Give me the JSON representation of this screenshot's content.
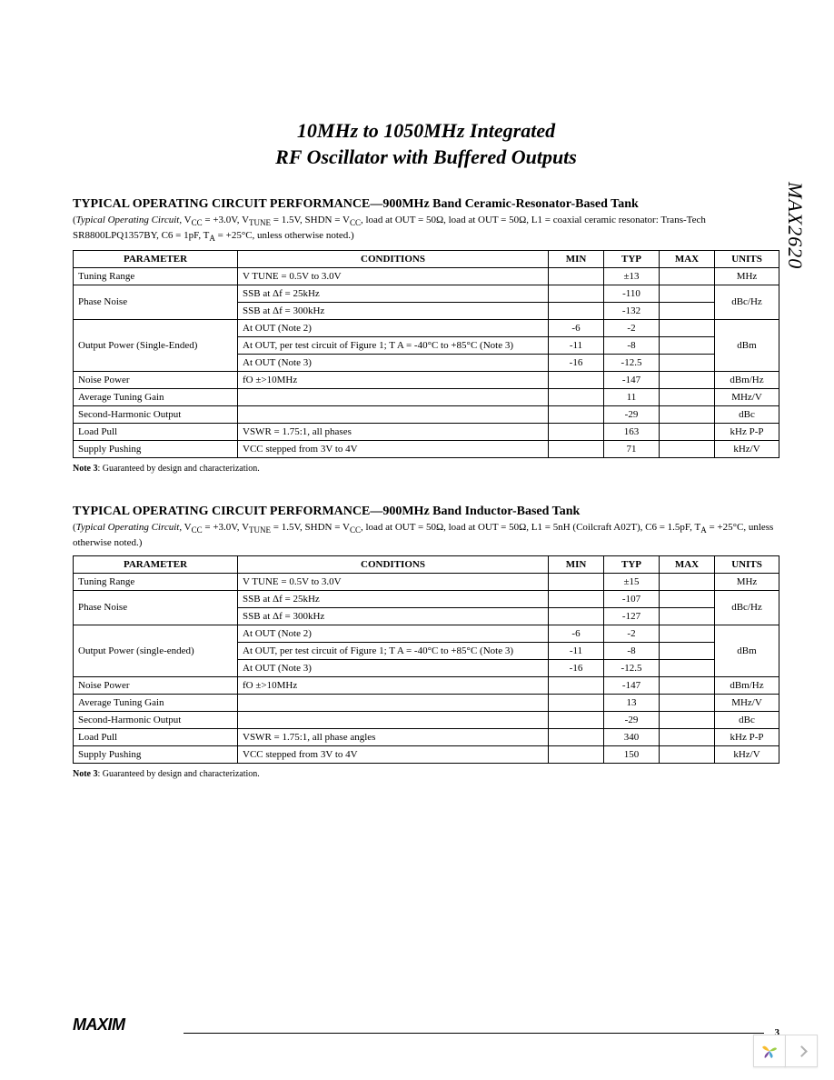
{
  "title_line1": "10MHz to 1050MHz Integrated",
  "title_line2": "RF Oscillator with Buffered Outputs",
  "side_label": "MAX2620",
  "table1": {
    "heading": "TYPICAL OPERATING CIRCUIT PERFORMANCE—900MHz Band Ceramic-Resonator-Based Tank",
    "sub_prefix": "(",
    "sub_italic": "Typical Operating Circuit",
    "sub_rest": ", V",
    "sub_cc": "CC",
    "sub_rest2": " = +3.0V, V",
    "sub_tune": "TUNE",
    "sub_rest3": " = 1.5V, SHDN = V",
    "sub_cc2": "CC",
    "sub_rest4": ", load at OUT = 50",
    "sub_ohm": "Ω, load at OUT = 50Ω, L1 = coaxial ceramic resonator: Trans-Tech SR8800LPQ1357BY, C6 = 1pF, T",
    "sub_a": "A",
    "sub_rest5": " = +25°C, unless otherwise noted.)",
    "headers": {
      "parameter": "PARAMETER",
      "conditions": "CONDITIONS",
      "min": "MIN",
      "typ": "TYP",
      "max": "MAX",
      "units": "UNITS"
    },
    "rows": [
      {
        "param": "Tuning Range",
        "cond": "V TUNE  = 0.5V to 3.0V",
        "min": "",
        "typ": "±13",
        "max": "",
        "units": "MHz"
      },
      {
        "param": "Phase Noise",
        "param_rowspan": 2,
        "cond": "SSB at  Δf = 25kHz",
        "min": "",
        "typ": "-110",
        "max": "",
        "units": "dBc/Hz",
        "units_rowspan": 2
      },
      {
        "cond": "SSB at  Δf = 300kHz",
        "min": "",
        "typ": "-132",
        "max": ""
      },
      {
        "param": "Output Power (Single-Ended)",
        "param_rowspan": 3,
        "cond": "At OUT (Note 2)",
        "min": "-6",
        "typ": "-2",
        "max": "",
        "units": "dBm",
        "units_rowspan": 3
      },
      {
        "cond": "At OUT, per test circuit of Figure 1; T A  = -40°C to +85°C (Note 3)",
        "min": "-11",
        "typ": "-8",
        "max": ""
      },
      {
        "cond": "At OUT (Note 3)",
        "min": "-16",
        "typ": "-12.5",
        "max": ""
      },
      {
        "param": "Noise Power",
        "cond": "fO  ±>10MHz",
        "min": "",
        "typ": "-147",
        "max": "",
        "units": "dBm/Hz"
      },
      {
        "param": "Average Tuning Gain",
        "cond": "",
        "min": "",
        "typ": "11",
        "max": "",
        "units": "MHz/V"
      },
      {
        "param": "Second-Harmonic Output",
        "cond": "",
        "min": "",
        "typ": "-29",
        "max": "",
        "units": "dBc"
      },
      {
        "param": "Load Pull",
        "cond": "VSWR = 1.75:1, all phases",
        "min": "",
        "typ": "163",
        "max": "",
        "units": "kHz P-P"
      },
      {
        "param": "Supply Pushing",
        "cond": "VCC  stepped from 3V to 4V",
        "min": "",
        "typ": "71",
        "max": "",
        "units": "kHz/V"
      }
    ]
  },
  "note3": "Note 3: Guaranteed by design and characterization.",
  "table2": {
    "heading": "TYPICAL OPERATING CIRCUIT PERFORMANCE—900MHz Band Inductor-Based Tank",
    "sub_prefix": "(",
    "sub_italic": "Typical Operating Circuit",
    "sub_rest": ", V",
    "sub_cc": "CC",
    "sub_rest2": " = +3.0V, V",
    "sub_tune": "TUNE",
    "sub_rest3": " = 1.5V, SHDN = V",
    "sub_cc2": "CC",
    "sub_rest4": ", load at OUT = 50",
    "sub_ohm": "Ω, load at OUT = 50Ω, L1 = 5nH (Coilcraft A02T), C6 = 1.5pF, T",
    "sub_a": "A",
    "sub_rest5": " = +25°C, unless otherwise noted.)",
    "headers": {
      "parameter": "PARAMETER",
      "conditions": "CONDITIONS",
      "min": "MIN",
      "typ": "TYP",
      "max": "MAX",
      "units": "UNITS"
    },
    "rows": [
      {
        "param": "Tuning Range",
        "cond": "V TUNE  = 0.5V to 3.0V",
        "min": "",
        "typ": "±15",
        "max": "",
        "units": "MHz"
      },
      {
        "param": "Phase Noise",
        "param_rowspan": 2,
        "cond": "SSB at  Δf = 25kHz",
        "min": "",
        "typ": "-107",
        "max": "",
        "units": "dBc/Hz",
        "units_rowspan": 2
      },
      {
        "cond": "SSB at  Δf = 300kHz",
        "min": "",
        "typ": "-127",
        "max": ""
      },
      {
        "param": "Output Power (single-ended)",
        "param_rowspan": 3,
        "cond": "At OUT (Note 2)",
        "min": "-6",
        "typ": "-2",
        "max": "",
        "units": "dBm",
        "units_rowspan": 3
      },
      {
        "cond": "At OUT, per test circuit of Figure 1; T A  = -40°C to +85°C (Note 3)",
        "min": "-11",
        "typ": "-8",
        "max": ""
      },
      {
        "cond": "At OUT (Note 3)",
        "min": "-16",
        "typ": "-12.5",
        "max": ""
      },
      {
        "param": "Noise Power",
        "cond": "fO  ±>10MHz",
        "min": "",
        "typ": "-147",
        "max": "",
        "units": "dBm/Hz"
      },
      {
        "param": "Average Tuning Gain",
        "cond": "",
        "min": "",
        "typ": "13",
        "max": "",
        "units": "MHz/V"
      },
      {
        "param": "Second-Harmonic Output",
        "cond": "",
        "min": "",
        "typ": "-29",
        "max": "",
        "units": "dBc"
      },
      {
        "param": "Load Pull",
        "cond": "VSWR = 1.75:1, all phase angles",
        "min": "",
        "typ": "340",
        "max": "",
        "units": "kHz P-P"
      },
      {
        "param": "Supply Pushing",
        "cond": "VCC  stepped from 3V to 4V",
        "min": "",
        "typ": "150",
        "max": "",
        "units": "kHz/V"
      }
    ]
  },
  "footer": {
    "logo": "MAXIM",
    "page": "3"
  },
  "widget_colors": {
    "petal1": "#f7bc2f",
    "petal2": "#9ecf48",
    "petal3": "#4aa6d4",
    "petal4": "#7b4ca0"
  }
}
